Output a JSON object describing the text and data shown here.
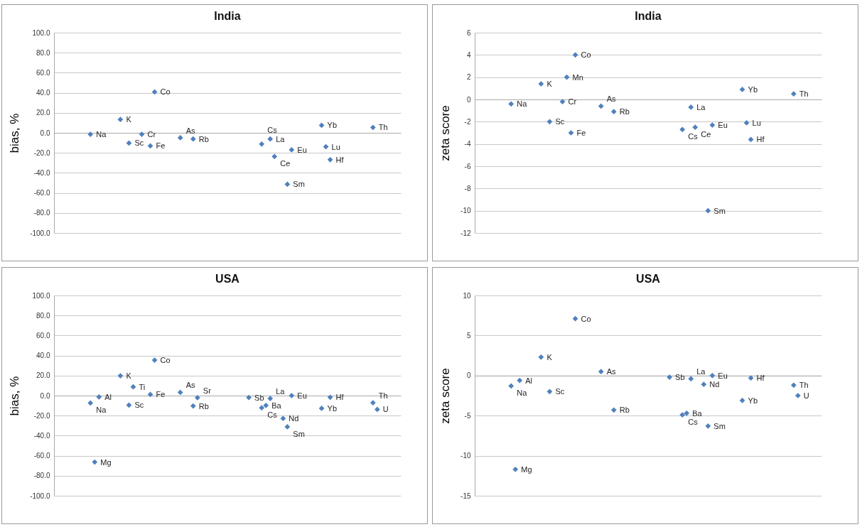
{
  "chart_data": [
    {
      "type": "scatter",
      "title": "India",
      "ylabel": "bias, %",
      "marker": "diamond",
      "grid": "y",
      "tick_labels": "y",
      "ylim": [
        -100,
        100
      ],
      "yticks": [
        {
          "value": -100,
          "label": "-100.0"
        },
        {
          "value": -80,
          "label": "-80.0"
        },
        {
          "value": -60,
          "label": "-60.0"
        },
        {
          "value": -40,
          "label": "-40.0"
        },
        {
          "value": -20,
          "label": "-20.0"
        },
        {
          "value": 0,
          "label": "0.0"
        },
        {
          "value": 20,
          "label": "20.0"
        },
        {
          "value": 40,
          "label": "40.0"
        },
        {
          "value": 60,
          "label": "60.0"
        },
        {
          "value": 80,
          "label": "80.0"
        },
        {
          "value": 100,
          "label": "100.0"
        }
      ],
      "categories": [
        null,
        null,
        null,
        null,
        null,
        null,
        null,
        null,
        null,
        null,
        null,
        null,
        null,
        null,
        null,
        null,
        null,
        null,
        null,
        null,
        null,
        null,
        null,
        null,
        null,
        null,
        null,
        null,
        null,
        null,
        null,
        null,
        null,
        null,
        null,
        null,
        null,
        null,
        null,
        null,
        null,
        null,
        null,
        null,
        null,
        null,
        null,
        null,
        null,
        null,
        null,
        null,
        null,
        null,
        null,
        null,
        null,
        null,
        null,
        null,
        null,
        null,
        null,
        null,
        null,
        null,
        null,
        null,
        null,
        null,
        null,
        null,
        null,
        null,
        null,
        null,
        null,
        null,
        null,
        null,
        null
      ],
      "series": [
        {
          "color": "#4f81bd",
          "values": [
            null,
            null,
            null,
            null,
            null,
            null,
            null,
            null,
            -1.5,
            null,
            null,
            null,
            null,
            null,
            null,
            13.3,
            null,
            -10.2,
            null,
            null,
            -1.5,
            null,
            -13.1,
            40.8,
            null,
            null,
            null,
            null,
            null,
            -4.9,
            null,
            null,
            -6.2,
            null,
            null,
            null,
            null,
            null,
            null,
            null,
            null,
            null,
            null,
            null,
            null,
            null,
            null,
            null,
            -11.2,
            null,
            -6.2,
            -23.6,
            null,
            null,
            -51.4,
            -17.0,
            null,
            null,
            null,
            null,
            null,
            null,
            7.5,
            -13.9,
            -26.8,
            null,
            null,
            null,
            null,
            null,
            null,
            null,
            null,
            null,
            5.4,
            null,
            null,
            null,
            null,
            null,
            null
          ],
          "value_labels": [
            null,
            null,
            null,
            null,
            null,
            null,
            null,
            null,
            "Na",
            null,
            null,
            null,
            null,
            null,
            null,
            "K",
            null,
            "Sc",
            null,
            null,
            "Cr",
            null,
            "Fe",
            "Co",
            null,
            null,
            null,
            null,
            null,
            "As",
            null,
            null,
            "Rb",
            null,
            null,
            null,
            null,
            null,
            null,
            null,
            null,
            null,
            null,
            null,
            null,
            null,
            null,
            null,
            "Cs",
            null,
            "La",
            "Ce",
            null,
            null,
            "Sm",
            "Eu",
            null,
            null,
            null,
            null,
            null,
            null,
            "Yb",
            "Lu",
            "Hf",
            null,
            null,
            null,
            null,
            null,
            null,
            null,
            null,
            null,
            "Th",
            null,
            null,
            null,
            null,
            null,
            null
          ]
        }
      ]
    },
    {
      "type": "scatter",
      "title": "India",
      "ylabel": "zeta score",
      "marker": "diamond",
      "grid": "y",
      "tick_labels": "y",
      "ylim": [
        -12,
        6
      ],
      "yticks": [
        -12,
        -10,
        -8,
        -6,
        -4,
        -2,
        0,
        2,
        4,
        6
      ],
      "categories": [
        null,
        null,
        null,
        null,
        null,
        null,
        null,
        null,
        null,
        null,
        null,
        null,
        null,
        null,
        null,
        null,
        null,
        null,
        null,
        null,
        null,
        null,
        null,
        null,
        null,
        null,
        null,
        null,
        null,
        null,
        null,
        null,
        null,
        null,
        null,
        null,
        null,
        null,
        null,
        null,
        null,
        null,
        null,
        null,
        null,
        null,
        null,
        null,
        null,
        null,
        null,
        null,
        null,
        null,
        null,
        null,
        null,
        null,
        null,
        null,
        null,
        null,
        null,
        null,
        null,
        null,
        null,
        null,
        null,
        null,
        null,
        null,
        null,
        null,
        null,
        null,
        null,
        null,
        null,
        null,
        null
      ],
      "series": [
        {
          "color": "#4f81bd",
          "values": [
            null,
            null,
            null,
            null,
            null,
            null,
            null,
            null,
            -0.4,
            null,
            null,
            null,
            null,
            null,
            null,
            1.4,
            null,
            -2.0,
            null,
            null,
            -0.2,
            2.0,
            -3.0,
            4.0,
            null,
            null,
            null,
            null,
            null,
            -0.6,
            null,
            null,
            -1.1,
            null,
            null,
            null,
            null,
            null,
            null,
            null,
            null,
            null,
            null,
            null,
            null,
            null,
            null,
            null,
            -2.7,
            null,
            -0.7,
            -2.5,
            null,
            null,
            -10.0,
            -2.3,
            null,
            null,
            null,
            null,
            null,
            null,
            0.9,
            -2.1,
            -3.6,
            null,
            null,
            null,
            null,
            null,
            null,
            null,
            null,
            null,
            0.5,
            null,
            null,
            null,
            null,
            null,
            null
          ],
          "value_labels": [
            null,
            null,
            null,
            null,
            null,
            null,
            null,
            null,
            "Na",
            null,
            null,
            null,
            null,
            null,
            null,
            "K",
            null,
            "Sc",
            null,
            null,
            "Cr",
            "Mn",
            "Fe",
            "Co",
            null,
            null,
            null,
            null,
            null,
            "As",
            null,
            null,
            "Rb",
            null,
            null,
            null,
            null,
            null,
            null,
            null,
            null,
            null,
            null,
            null,
            null,
            null,
            null,
            null,
            "Cs",
            null,
            "La",
            "Ce",
            null,
            null,
            "Sm",
            "Eu",
            null,
            null,
            null,
            null,
            null,
            null,
            "Yb",
            "Lu",
            "Hf",
            null,
            null,
            null,
            null,
            null,
            null,
            null,
            null,
            null,
            "Th",
            null,
            null,
            null,
            null,
            null,
            null
          ]
        }
      ]
    },
    {
      "type": "scatter",
      "title": "USA",
      "ylabel": "bias, %",
      "marker": "diamond",
      "grid": "y",
      "tick_labels": "y",
      "ylim": [
        -100,
        100
      ],
      "yticks": [
        {
          "value": -100,
          "label": "-100.0"
        },
        {
          "value": -80,
          "label": "-80.0"
        },
        {
          "value": -60,
          "label": "-60.0"
        },
        {
          "value": -40,
          "label": "-40.0"
        },
        {
          "value": -20,
          "label": "-20.0"
        },
        {
          "value": 0,
          "label": "0.0"
        },
        {
          "value": 20,
          "label": "20.0"
        },
        {
          "value": 40,
          "label": "40.0"
        },
        {
          "value": 60,
          "label": "60.0"
        },
        {
          "value": 80,
          "label": "80.0"
        },
        {
          "value": 100,
          "label": "100.0"
        }
      ],
      "categories": [
        null,
        null,
        null,
        null,
        null,
        null,
        null,
        null,
        null,
        null,
        null,
        null,
        null,
        null,
        null,
        null,
        null,
        null,
        null,
        null,
        null,
        null,
        null,
        null,
        null,
        null,
        null,
        null,
        null,
        null,
        null,
        null,
        null,
        null,
        null,
        null,
        null,
        null,
        null,
        null,
        null,
        null,
        null,
        null,
        null,
        null,
        null,
        null,
        null,
        null,
        null,
        null,
        null,
        null,
        null,
        null,
        null,
        null,
        null,
        null,
        null,
        null,
        null,
        null,
        null,
        null,
        null,
        null,
        null,
        null,
        null,
        null,
        null,
        null,
        null,
        null,
        null,
        null,
        null,
        null,
        null
      ],
      "series": [
        {
          "color": "#4f81bd",
          "values": [
            null,
            null,
            null,
            null,
            null,
            null,
            null,
            null,
            -7.4,
            -66.4,
            -1.3,
            null,
            null,
            null,
            null,
            19.8,
            null,
            -9.5,
            8.7,
            null,
            null,
            null,
            1.1,
            35.4,
            null,
            null,
            null,
            null,
            null,
            3.2,
            null,
            null,
            -10.3,
            -2.1,
            null,
            null,
            null,
            null,
            null,
            null,
            null,
            null,
            null,
            null,
            null,
            -1.9,
            null,
            null,
            -12.2,
            -9.8,
            -2.9,
            null,
            null,
            -22.8,
            -31.2,
            0.0,
            null,
            null,
            null,
            null,
            null,
            null,
            -12.7,
            null,
            -1.6,
            null,
            null,
            null,
            null,
            null,
            null,
            null,
            null,
            null,
            -7.1,
            -13.8,
            null,
            null,
            null,
            null,
            null
          ],
          "value_labels": [
            null,
            null,
            null,
            null,
            null,
            null,
            null,
            null,
            "Na",
            "Mg",
            "Al",
            null,
            null,
            null,
            null,
            "K",
            null,
            "Sc",
            "Ti",
            null,
            null,
            null,
            "Fe",
            "Co",
            null,
            null,
            null,
            null,
            null,
            "As",
            null,
            null,
            "Rb",
            "Sr",
            null,
            null,
            null,
            null,
            null,
            null,
            null,
            null,
            null,
            null,
            null,
            "Sb",
            null,
            null,
            "Cs",
            "Ba",
            "La",
            null,
            null,
            "Nd",
            "Sm",
            "Eu",
            null,
            null,
            null,
            null,
            null,
            null,
            "Yb",
            null,
            "Hf",
            null,
            null,
            null,
            null,
            null,
            null,
            null,
            null,
            null,
            "Th",
            "U",
            null,
            null,
            null,
            null,
            null
          ]
        }
      ]
    },
    {
      "type": "scatter",
      "title": "USA",
      "ylabel": "zeta score",
      "marker": "diamond",
      "grid": "y",
      "tick_labels": "y",
      "ylim": [
        -15,
        10
      ],
      "yticks": [
        -15,
        -10,
        -5,
        0,
        5,
        10
      ],
      "categories": [
        null,
        null,
        null,
        null,
        null,
        null,
        null,
        null,
        null,
        null,
        null,
        null,
        null,
        null,
        null,
        null,
        null,
        null,
        null,
        null,
        null,
        null,
        null,
        null,
        null,
        null,
        null,
        null,
        null,
        null,
        null,
        null,
        null,
        null,
        null,
        null,
        null,
        null,
        null,
        null,
        null,
        null,
        null,
        null,
        null,
        null,
        null,
        null,
        null,
        null,
        null,
        null,
        null,
        null,
        null,
        null,
        null,
        null,
        null,
        null,
        null,
        null,
        null,
        null,
        null,
        null,
        null,
        null,
        null,
        null,
        null,
        null,
        null,
        null,
        null,
        null,
        null,
        null,
        null,
        null,
        null
      ],
      "series": [
        {
          "color": "#4f81bd",
          "values": [
            null,
            null,
            null,
            null,
            null,
            null,
            null,
            null,
            -1.3,
            -11.7,
            -0.6,
            null,
            null,
            null,
            null,
            2.3,
            null,
            -2.0,
            null,
            null,
            null,
            null,
            null,
            7.1,
            null,
            null,
            null,
            null,
            null,
            0.5,
            null,
            null,
            -4.3,
            null,
            null,
            null,
            null,
            null,
            null,
            null,
            null,
            null,
            null,
            null,
            null,
            -0.2,
            null,
            null,
            -4.9,
            -4.7,
            -0.4,
            null,
            null,
            -1.1,
            -6.3,
            0.0,
            null,
            null,
            null,
            null,
            null,
            null,
            -3.1,
            null,
            -0.3,
            null,
            null,
            null,
            null,
            null,
            null,
            null,
            null,
            null,
            -1.2,
            -2.5,
            null,
            null,
            null,
            null,
            null
          ],
          "value_labels": [
            null,
            null,
            null,
            null,
            null,
            null,
            null,
            null,
            "Na",
            "Mg",
            "Al",
            null,
            null,
            null,
            null,
            "K",
            null,
            "Sc",
            null,
            null,
            null,
            null,
            null,
            "Co",
            null,
            null,
            null,
            null,
            null,
            "As",
            null,
            null,
            "Rb",
            null,
            null,
            null,
            null,
            null,
            null,
            null,
            null,
            null,
            null,
            null,
            null,
            "Sb",
            null,
            null,
            "Cs",
            "Ba",
            "La",
            null,
            null,
            "Nd",
            "Sm",
            "Eu",
            null,
            null,
            null,
            null,
            null,
            null,
            "Yb",
            null,
            "Hf",
            null,
            null,
            null,
            null,
            null,
            null,
            null,
            null,
            null,
            "Th",
            "U",
            null,
            null,
            null,
            null,
            null
          ]
        }
      ]
    }
  ]
}
